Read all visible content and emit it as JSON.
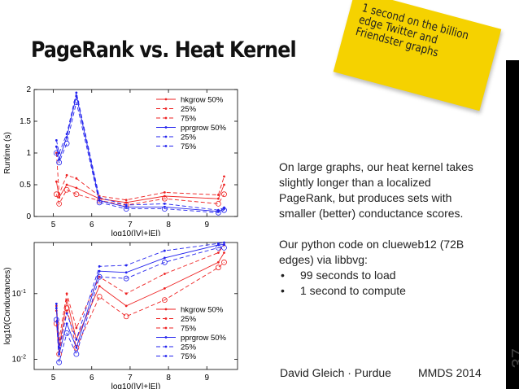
{
  "slide": {
    "title": "PageRank vs. Heat Kernel",
    "note": "1 second on the billion\nedge Twitter and\nFriendster graphs",
    "body_paragraph1": "On large graphs, our heat kernel takes slightly longer than a localized PageRank, but produces sets with smaller (better) conductance scores.",
    "body_paragraph2": "Our python code on clueweb12 (72B edges) via libbvg:",
    "bullets": [
      "99 seconds to load",
      "1 second to compute"
    ],
    "footer_author": "David Gleich · Purdue",
    "footer_venue": "MMDS 2014",
    "slide_number": "37"
  },
  "colors": {
    "hk": "#ee2222",
    "pr": "#2222ee",
    "note": "#f5d200"
  },
  "chart_data": [
    {
      "type": "line",
      "xlabel": "log10(|V|+|E|)",
      "ylabel": "Runtime (s)",
      "xlim": [
        4.5,
        9.8
      ],
      "ylim": [
        0,
        2
      ],
      "xticks": [
        "5",
        "6",
        "7",
        "8",
        "9"
      ],
      "yticks": [
        "0",
        "0.5",
        "1",
        "1.5",
        "2"
      ],
      "legend": [
        "hkgrow 50%",
        "25%",
        "75%",
        "pprgrow 50%",
        "25%",
        "75%"
      ],
      "legend_position": "top-right",
      "x": [
        5.08,
        5.15,
        5.35,
        5.6,
        6.2,
        6.9,
        7.9,
        9.3,
        9.45
      ],
      "series": [
        {
          "name": "hkgrow 50%",
          "values": [
            0.55,
            0.3,
            0.5,
            0.45,
            0.28,
            0.22,
            0.32,
            0.28,
            0.5
          ]
        },
        {
          "name": "25%",
          "values": [
            0.35,
            0.2,
            0.42,
            0.35,
            0.25,
            0.18,
            0.28,
            0.2,
            0.35
          ]
        },
        {
          "name": "75%",
          "values": [
            1.0,
            0.35,
            0.65,
            0.6,
            0.32,
            0.26,
            0.38,
            0.34,
            0.63
          ]
        },
        {
          "name": "pprgrow 50%",
          "values": [
            1.1,
            0.9,
            1.25,
            1.9,
            0.25,
            0.15,
            0.15,
            0.08,
            0.12
          ]
        },
        {
          "name": "25%",
          "values": [
            1.0,
            0.85,
            1.15,
            1.8,
            0.22,
            0.12,
            0.12,
            0.06,
            0.1
          ]
        },
        {
          "name": "75%",
          "values": [
            1.2,
            1.0,
            1.3,
            1.95,
            0.3,
            0.18,
            0.2,
            0.1,
            0.14
          ]
        }
      ]
    },
    {
      "type": "line",
      "xlabel": "log10(|V|+|E|)",
      "ylabel": "log10(Conductances)",
      "yscale": "log",
      "xlim": [
        4.5,
        9.8
      ],
      "ylim": [
        0.007,
        0.6
      ],
      "xticks": [
        "5",
        "6",
        "7",
        "8",
        "9"
      ],
      "yticks": [
        "10^-2",
        "10^-1"
      ],
      "legend": [
        "hkgrow 50%",
        "25%",
        "75%",
        "pprgrow 50%",
        "25%",
        "75%"
      ],
      "legend_position": "bottom-right",
      "x": [
        5.08,
        5.15,
        5.35,
        5.6,
        6.2,
        6.9,
        7.9,
        9.3,
        9.45
      ],
      "series": [
        {
          "name": "hkgrow 50%",
          "values": [
            0.055,
            0.015,
            0.08,
            0.02,
            0.13,
            0.065,
            0.12,
            0.3,
            0.42
          ]
        },
        {
          "name": "25%",
          "values": [
            0.035,
            0.012,
            0.06,
            0.015,
            0.09,
            0.045,
            0.08,
            0.25,
            0.3
          ]
        },
        {
          "name": "75%",
          "values": [
            0.065,
            0.02,
            0.1,
            0.03,
            0.18,
            0.1,
            0.2,
            0.42,
            0.55
          ]
        },
        {
          "name": "pprgrow 50%",
          "values": [
            0.06,
            0.012,
            0.035,
            0.015,
            0.22,
            0.21,
            0.35,
            0.55,
            0.56
          ]
        },
        {
          "name": "25%",
          "values": [
            0.04,
            0.009,
            0.025,
            0.012,
            0.18,
            0.17,
            0.3,
            0.5,
            0.5
          ]
        },
        {
          "name": "75%",
          "values": [
            0.07,
            0.015,
            0.05,
            0.02,
            0.26,
            0.27,
            0.45,
            0.58,
            0.6
          ]
        }
      ]
    }
  ]
}
